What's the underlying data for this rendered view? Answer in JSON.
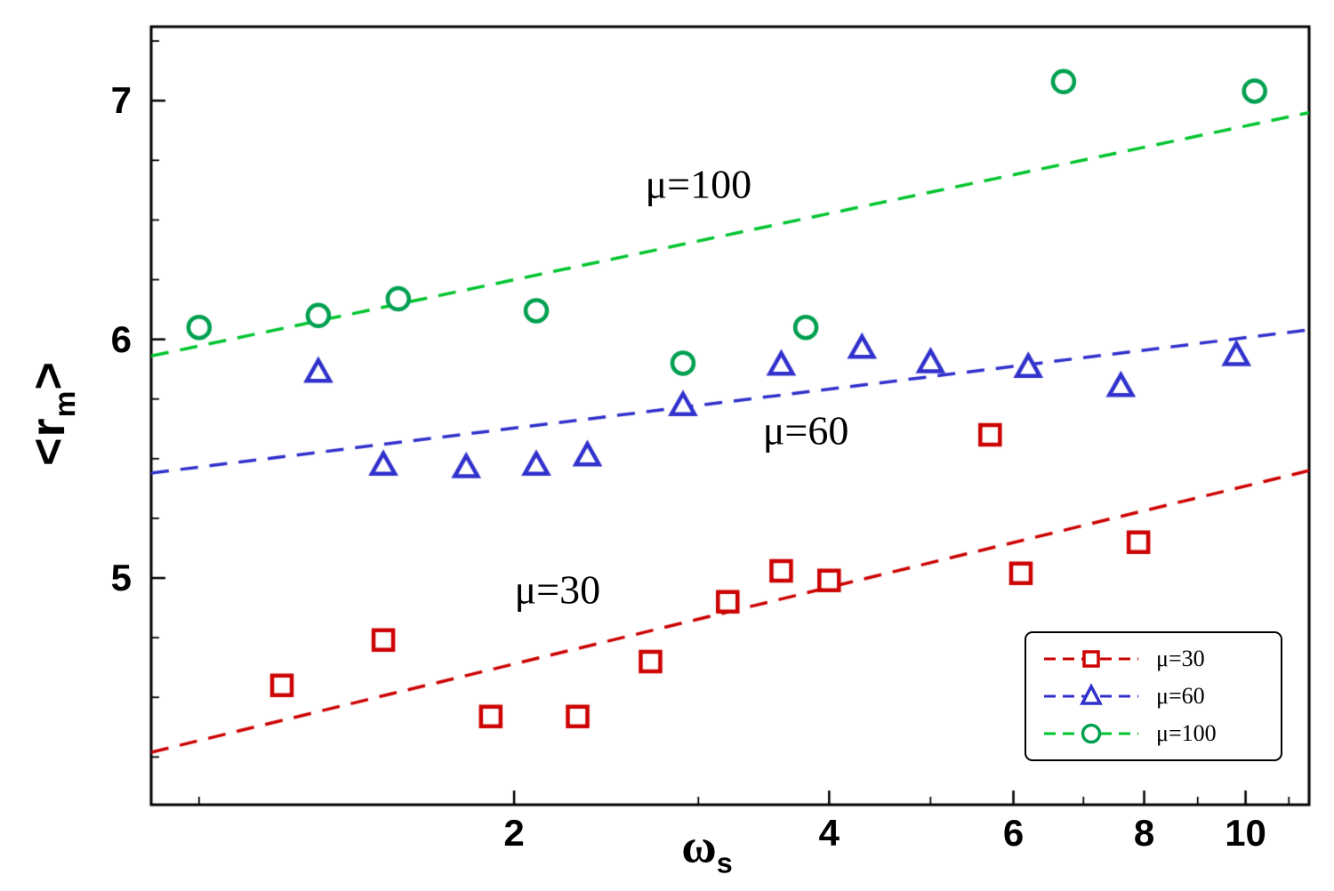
{
  "chart_data": {
    "type": "scatter",
    "title": "",
    "x_scale": "log",
    "xlim": [
      0.9,
      11.5
    ],
    "ylim": [
      4.05,
      7.31
    ],
    "grid": false,
    "background": "#ffffff",
    "frame_color": "#000000",
    "xlabel": {
      "main": "ω",
      "sub": "s"
    },
    "ylabel": {
      "pre": "<r",
      "sub": "m",
      "post": ">"
    },
    "x_ticks": {
      "major": [
        2,
        4,
        6,
        8,
        10
      ],
      "labels": [
        "2",
        "4",
        "6",
        "8",
        "10"
      ],
      "minor": [
        1,
        3,
        5,
        7,
        9,
        11
      ]
    },
    "y_ticks": {
      "major": [
        5,
        6,
        7
      ],
      "labels": [
        "5",
        "6",
        "7"
      ],
      "minor_step": 0.25
    },
    "series": [
      {
        "name": "mu30",
        "label": "μ=30",
        "marker": "square",
        "color": "#cc0000",
        "line_color": "#cc0000",
        "points": [
          [
            1.2,
            4.55
          ],
          [
            1.5,
            4.74
          ],
          [
            1.9,
            4.42
          ],
          [
            2.3,
            4.42
          ],
          [
            2.7,
            4.65
          ],
          [
            3.2,
            4.9
          ],
          [
            3.6,
            5.03
          ],
          [
            4.0,
            4.99
          ],
          [
            5.7,
            5.6
          ],
          [
            6.1,
            5.02
          ],
          [
            7.9,
            5.15
          ]
        ],
        "trend": [
          [
            0.9,
            4.27
          ],
          [
            11.5,
            5.45
          ]
        ]
      },
      {
        "name": "mu60",
        "label": "μ=60",
        "marker": "triangle",
        "color": "#3030cc",
        "line_color": "#3030cc",
        "points": [
          [
            1.3,
            5.86
          ],
          [
            1.5,
            5.47
          ],
          [
            1.8,
            5.46
          ],
          [
            2.1,
            5.47
          ],
          [
            2.35,
            5.51
          ],
          [
            2.9,
            5.72
          ],
          [
            3.6,
            5.89
          ],
          [
            4.3,
            5.96
          ],
          [
            5.0,
            5.9
          ],
          [
            6.2,
            5.88
          ],
          [
            7.6,
            5.8
          ],
          [
            9.8,
            5.93
          ]
        ],
        "trend": [
          [
            0.9,
            5.44
          ],
          [
            11.5,
            6.04
          ]
        ]
      },
      {
        "name": "mu100",
        "label": "μ=100",
        "marker": "circle",
        "color": "#00a050",
        "line_color": "#00c42e",
        "points": [
          [
            1.0,
            6.05
          ],
          [
            1.3,
            6.1
          ],
          [
            1.55,
            6.17
          ],
          [
            2.1,
            6.12
          ],
          [
            2.9,
            5.9
          ],
          [
            3.8,
            6.05
          ],
          [
            6.7,
            7.08
          ],
          [
            10.2,
            7.04
          ]
        ],
        "trend": [
          [
            0.9,
            5.93
          ],
          [
            11.5,
            6.95
          ]
        ]
      }
    ],
    "annotations": [
      {
        "name": "mu100",
        "text": "μ=100",
        "x": 3.0,
        "y": 6.65
      },
      {
        "name": "mu60",
        "text": "μ=60",
        "x": 3.8,
        "y": 5.62
      },
      {
        "name": "mu30",
        "text": "μ=30",
        "x": 2.2,
        "y": 4.95
      }
    ],
    "legend": {
      "position": "bottom-right",
      "entries": [
        "μ=30",
        "μ=60",
        "μ=100"
      ]
    }
  }
}
